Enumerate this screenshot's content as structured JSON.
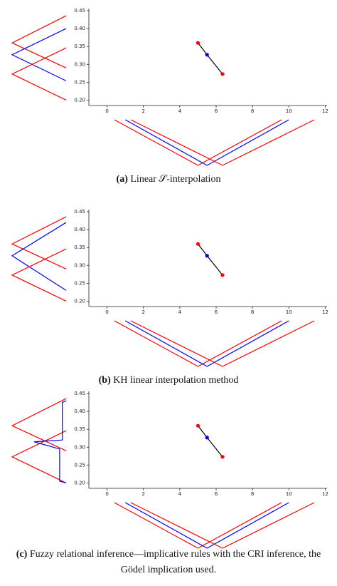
{
  "chart_data": [
    {
      "type": "scatter",
      "label": "(a)",
      "caption": "Linear 𝒮-interpolation",
      "x": [
        5,
        5.5,
        6.35
      ],
      "values": [
        0.36,
        0.327,
        0.273
      ],
      "colors": [
        "red",
        "blue",
        "red"
      ],
      "line_color": "black",
      "xlim": [
        -1,
        12.1
      ],
      "ylim": [
        0.185,
        0.45
      ],
      "xticks": [
        0,
        2,
        4,
        6,
        8,
        10,
        12
      ],
      "yticks": [
        {
          "value": 0.2,
          "label": "0.20"
        },
        0.25,
        {
          "value": 0.3,
          "label": "0.30"
        },
        0.35,
        {
          "value": 0.4,
          "label": "0.40"
        },
        0.45
      ],
      "x_sets": [
        {
          "color": "red",
          "x": [
            0.4,
            5,
            9.6
          ],
          "membership": [
            0,
            1,
            0
          ]
        },
        {
          "color": "blue",
          "x": [
            1,
            5.5,
            10
          ],
          "membership": [
            0,
            1,
            0
          ]
        },
        {
          "color": "red",
          "x": [
            1.3,
            6.35,
            11.4
          ],
          "membership": [
            0,
            1,
            0
          ]
        }
      ],
      "y_sets": [
        {
          "color": "red",
          "y": [
            0.436,
            0.36,
            0.29
          ],
          "membership": [
            0,
            1,
            0
          ]
        },
        {
          "color": "blue",
          "y": [
            0.4,
            0.327,
            0.254
          ],
          "membership": [
            0,
            1,
            0
          ]
        },
        {
          "color": "red",
          "y": [
            0.346,
            0.273,
            0.2
          ],
          "membership": [
            0,
            1,
            0
          ]
        }
      ]
    },
    {
      "type": "scatter",
      "label": "(b)",
      "caption": "KH linear interpolation method",
      "x": [
        5,
        5.5,
        6.35
      ],
      "values": [
        0.36,
        0.327,
        0.273
      ],
      "colors": [
        "red",
        "blue",
        "red"
      ],
      "line_color": "black",
      "xlim": [
        -1,
        12.1
      ],
      "ylim": [
        0.185,
        0.45
      ],
      "xticks": [
        0,
        2,
        4,
        6,
        8,
        10,
        12
      ],
      "yticks": [
        {
          "value": 0.2,
          "label": "0.20"
        },
        0.25,
        {
          "value": 0.3,
          "label": "0.30"
        },
        0.35,
        {
          "value": 0.4,
          "label": "0.40"
        },
        0.45
      ],
      "x_sets": [
        {
          "color": "red",
          "x": [
            0.4,
            5,
            9.6
          ],
          "membership": [
            0,
            1,
            0
          ]
        },
        {
          "color": "blue",
          "x": [
            1,
            5.5,
            10
          ],
          "membership": [
            0,
            1,
            0
          ]
        },
        {
          "color": "red",
          "x": [
            1.3,
            6.35,
            11.4
          ],
          "membership": [
            0,
            1,
            0
          ]
        }
      ],
      "y_sets": [
        {
          "color": "red",
          "y": [
            0.436,
            0.36,
            0.29
          ],
          "membership": [
            0,
            1,
            0
          ]
        },
        {
          "color": "blue",
          "y": [
            0.42,
            0.327,
            0.23
          ],
          "membership": [
            0,
            1,
            0
          ]
        },
        {
          "color": "red",
          "y": [
            0.346,
            0.273,
            0.2
          ],
          "membership": [
            0,
            1,
            0
          ]
        }
      ]
    },
    {
      "type": "scatter",
      "label": "(c)",
      "caption": "Fuzzy relational inference—implicative rules with the CRI inference, the Gödel implication used.",
      "x": [
        5,
        5.5,
        6.35
      ],
      "values": [
        0.36,
        0.327,
        0.273
      ],
      "colors": [
        "red",
        "blue",
        "red"
      ],
      "line_color": "black",
      "xlim": [
        -1,
        12.1
      ],
      "ylim": [
        0.185,
        0.45
      ],
      "xticks": [
        0,
        2,
        4,
        6,
        8,
        10,
        12
      ],
      "yticks": [
        {
          "value": 0.2,
          "label": "0.20"
        },
        0.25,
        {
          "value": 0.3,
          "label": "0.30"
        },
        0.35,
        {
          "value": 0.4,
          "label": "0.40"
        },
        0.45
      ],
      "x_sets": [
        {
          "color": "red",
          "x": [
            0.4,
            5,
            9.6
          ],
          "membership": [
            0,
            1,
            0
          ]
        },
        {
          "color": "blue",
          "x": [
            1,
            5.5,
            10
          ],
          "membership": [
            0,
            1,
            0
          ]
        },
        {
          "color": "red",
          "x": [
            1.3,
            6.35,
            11.4
          ],
          "membership": [
            0,
            1,
            0
          ]
        }
      ],
      "y_sets": [
        {
          "color": "red",
          "y": [
            0.436,
            0.36,
            0.29
          ],
          "membership": [
            0,
            1,
            0
          ]
        },
        {
          "color": "red",
          "y": [
            0.346,
            0.273,
            0.2
          ],
          "membership": [
            0,
            1,
            0
          ]
        },
        {
          "color": "blue",
          "y": [
            0.43,
            0.425,
            0.32,
            0.315,
            0.295,
            0.205,
            0.2
          ],
          "membership": [
            0,
            0.07,
            0.07,
            0.59,
            0.12,
            0.12,
            0
          ]
        }
      ]
    }
  ]
}
